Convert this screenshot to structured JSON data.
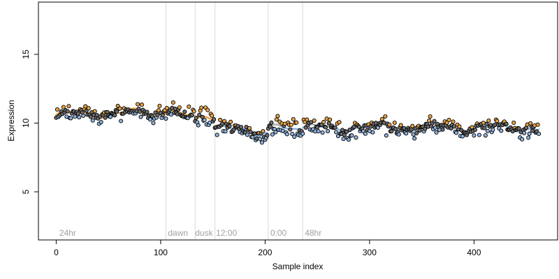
{
  "chart_data": {
    "type": "scatter",
    "xlabel": "Sample index",
    "ylabel": "Expression",
    "xlim": [
      -17,
      480
    ],
    "ylim": [
      1.5,
      18.8
    ],
    "x_ticks": [
      0,
      100,
      200,
      300,
      400
    ],
    "y_ticks": [
      5,
      10,
      15
    ],
    "grid": false,
    "condition_boundaries": [
      105,
      133,
      152,
      203,
      236
    ],
    "condition_labels": [
      {
        "label": "24hr",
        "x": 3
      },
      {
        "label": "dawn",
        "x": 107
      },
      {
        "label": "dusk",
        "x": 133
      },
      {
        "label": "12:00",
        "x": 153
      },
      {
        "label": "0:00",
        "x": 205
      },
      {
        "label": "48hr",
        "x": 238
      }
    ],
    "trend_segments": [
      {
        "start": 0,
        "end": 104,
        "base": 10.6,
        "slope": 0.002
      },
      {
        "start": 105,
        "end": 132,
        "base": 10.75,
        "slope": -0.012
      },
      {
        "start": 133,
        "end": 151,
        "base": 10.25,
        "slope": -0.005
      },
      {
        "start": 152,
        "end": 202,
        "base": 9.55,
        "slope": -0.004
      },
      {
        "start": 203,
        "end": 235,
        "base": 9.7,
        "slope": -0.01
      },
      {
        "start": 236,
        "end": 462,
        "base": 9.65,
        "slope": 0.0
      }
    ],
    "colors": {
      "point_fill_default": "#6e6e6e",
      "point_fill_high": "#e8a448",
      "point_fill_low": "#8fb3e0",
      "point_outline": "#000000",
      "trend_high": "#e8a448",
      "trend_low": "#8fb3e0",
      "trend_neutral": "#b0b0b0",
      "boundary_line": "#d9d9d9",
      "condition_label": "#a0a0a0"
    }
  }
}
